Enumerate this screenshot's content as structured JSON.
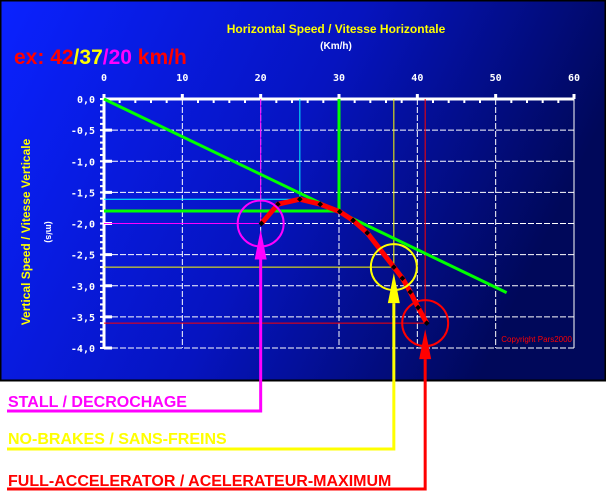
{
  "chart_data": {
    "type": "line",
    "title": "Horizontal Speed / Vitesse Horizontale",
    "xlabel": "(Km/h)",
    "ylabel": "Vertical Speed / Vitesse Verticale",
    "ylabel_unit": "(m/s)",
    "example": {
      "prefix": "ex: ",
      "values": [
        "42",
        "37",
        "20"
      ],
      "unit": " km/h",
      "colors": [
        "#ff0000",
        "#ffff00",
        "#ff00ff"
      ]
    },
    "xlim": [
      0,
      60
    ],
    "ylim": [
      -4.0,
      0.0
    ],
    "x_ticks": [
      "0",
      "10",
      "20",
      "30",
      "40",
      "50",
      "60"
    ],
    "y_ticks": [
      "0,0",
      "-0,5",
      "-1,0",
      "-1,5",
      "-2,0",
      "-2,5",
      "-3,0",
      "-3,5",
      "-4,0"
    ],
    "grid": true,
    "polar_curve": {
      "color": "#ff0000",
      "x": [
        20.1,
        22.2,
        25.0,
        27.6,
        30.1,
        31.8,
        33.6,
        37.0,
        38.1,
        39.1,
        40.1,
        41.2
      ],
      "y": [
        -2.0,
        -1.69,
        -1.61,
        -1.69,
        -1.81,
        -1.95,
        -2.15,
        -2.7,
        -2.88,
        -3.1,
        -3.35,
        -3.6
      ]
    },
    "glide_line": {
      "color": "#00ff00",
      "x": [
        0,
        51.4
      ],
      "y": [
        0,
        -3.11
      ]
    },
    "reference_lines": [
      {
        "color": "#ff00ff",
        "x": 20,
        "y": -2.0
      },
      {
        "color": "#00ffff",
        "x": 25,
        "y": -1.61
      },
      {
        "color": "#00ff00",
        "x": 30,
        "y": -1.8
      },
      {
        "color": "#ffff00",
        "x": 37,
        "y": -2.7
      },
      {
        "color": "#ff0000",
        "x": 41,
        "y": -3.6
      }
    ],
    "markers": [
      {
        "label": "STALL / DECROCHAGE",
        "color": "#ff00ff",
        "x": 20,
        "y": -2.0
      },
      {
        "label": "NO-BRAKES / SANS-FREINS",
        "color": "#ffff00",
        "x": 37,
        "y": -2.7
      },
      {
        "label": "FULL-ACCELERATOR / ACELERATEUR-MAXIMUM",
        "color": "#ff0000",
        "x": 41,
        "y": -3.6
      }
    ],
    "copyright": "Copyright Pars2000"
  }
}
